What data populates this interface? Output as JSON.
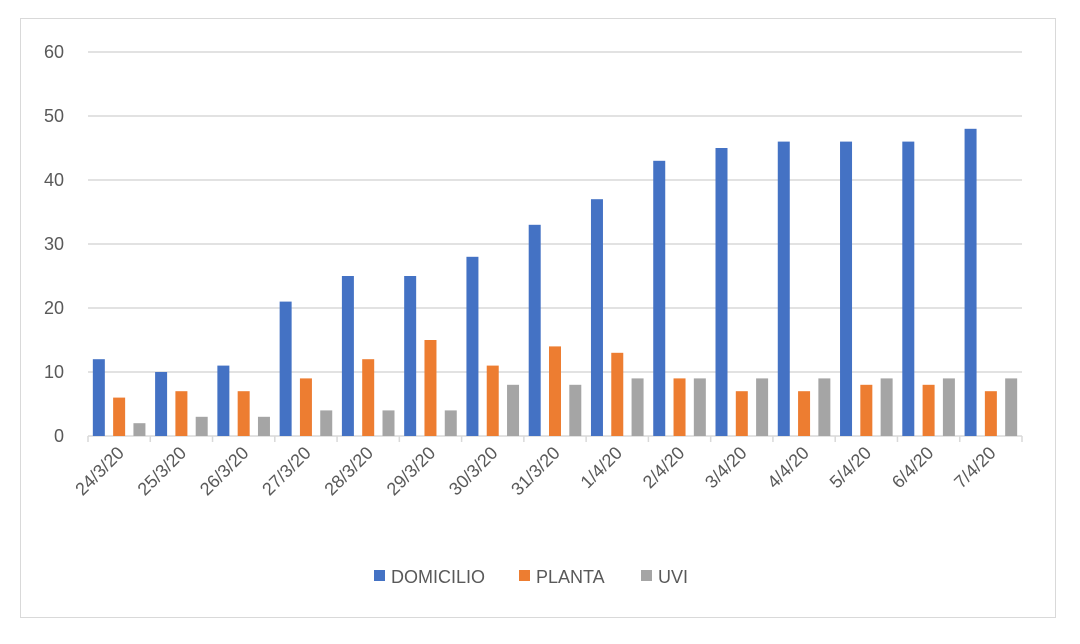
{
  "chart_data": {
    "type": "bar",
    "title": "",
    "xlabel": "",
    "ylabel": "",
    "ylim": [
      0,
      60
    ],
    "yticks": [
      "0",
      "10",
      "20",
      "30",
      "40",
      "50",
      "60"
    ],
    "grid": true,
    "legend_position": "bottom",
    "categories": [
      "24/3/20",
      "25/3/20",
      "26/3/20",
      "27/3/20",
      "28/3/20",
      "29/3/20",
      "30/3/20",
      "31/3/20",
      "1/4/20",
      "2/4/20",
      "3/4/20",
      "4/4/20",
      "5/4/20",
      "6/4/20",
      "7/4/20"
    ],
    "series": [
      {
        "name": "DOMICILIO",
        "color": "#4472c4",
        "values": [
          12,
          10,
          11,
          21,
          25,
          25,
          28,
          33,
          37,
          43,
          45,
          46,
          46,
          46,
          48
        ]
      },
      {
        "name": "PLANTA",
        "color": "#ed7d31",
        "values": [
          6,
          7,
          7,
          9,
          12,
          15,
          11,
          14,
          13,
          9,
          7,
          7,
          8,
          8,
          7
        ]
      },
      {
        "name": "UVI",
        "color": "#a5a5a5",
        "values": [
          2,
          3,
          3,
          4,
          4,
          4,
          8,
          8,
          9,
          9,
          9,
          9,
          9,
          9,
          9
        ]
      }
    ]
  }
}
